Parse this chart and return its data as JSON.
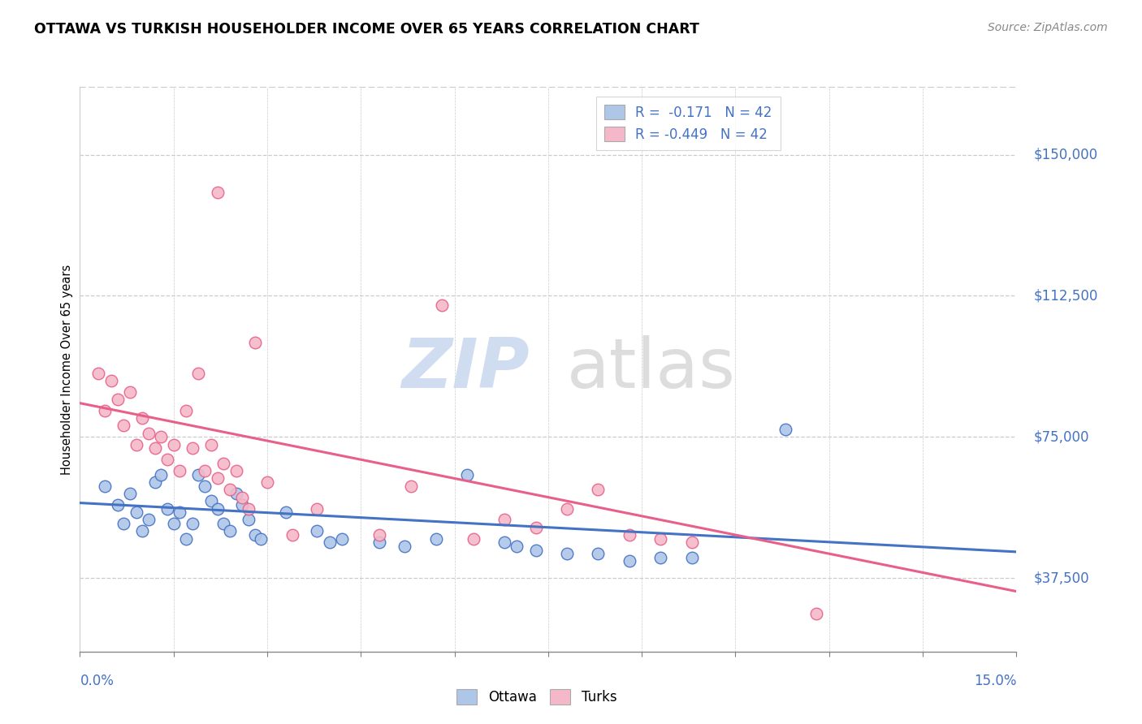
{
  "title": "OTTAWA VS TURKISH HOUSEHOLDER INCOME OVER 65 YEARS CORRELATION CHART",
  "source": "Source: ZipAtlas.com",
  "ylabel": "Householder Income Over 65 years",
  "xmin": 0.0,
  "xmax": 0.15,
  "ymin": 18000,
  "ymax": 168000,
  "yticks": [
    37500,
    75000,
    112500,
    150000
  ],
  "ytick_labels": [
    "$37,500",
    "$75,000",
    "$112,500",
    "$150,000"
  ],
  "legend_r_ottawa": "R =  -0.171",
  "legend_n_ottawa": "N = 42",
  "legend_r_turks": "R = -0.449",
  "legend_n_turks": "N = 42",
  "watermark_zip": "ZIP",
  "watermark_atlas": "atlas",
  "ottawa_color": "#aec6e8",
  "turks_color": "#f5b8c8",
  "ottawa_line_color": "#4472c4",
  "turks_line_color": "#e8608a",
  "background_color": "#ffffff",
  "ottawa_scatter": [
    [
      0.004,
      62000
    ],
    [
      0.006,
      57000
    ],
    [
      0.007,
      52000
    ],
    [
      0.008,
      60000
    ],
    [
      0.009,
      55000
    ],
    [
      0.01,
      50000
    ],
    [
      0.011,
      53000
    ],
    [
      0.012,
      63000
    ],
    [
      0.013,
      65000
    ],
    [
      0.014,
      56000
    ],
    [
      0.015,
      52000
    ],
    [
      0.016,
      55000
    ],
    [
      0.017,
      48000
    ],
    [
      0.018,
      52000
    ],
    [
      0.019,
      65000
    ],
    [
      0.02,
      62000
    ],
    [
      0.021,
      58000
    ],
    [
      0.022,
      56000
    ],
    [
      0.023,
      52000
    ],
    [
      0.024,
      50000
    ],
    [
      0.025,
      60000
    ],
    [
      0.026,
      57000
    ],
    [
      0.027,
      53000
    ],
    [
      0.028,
      49000
    ],
    [
      0.029,
      48000
    ],
    [
      0.033,
      55000
    ],
    [
      0.038,
      50000
    ],
    [
      0.04,
      47000
    ],
    [
      0.042,
      48000
    ],
    [
      0.048,
      47000
    ],
    [
      0.052,
      46000
    ],
    [
      0.057,
      48000
    ],
    [
      0.062,
      65000
    ],
    [
      0.068,
      47000
    ],
    [
      0.07,
      46000
    ],
    [
      0.073,
      45000
    ],
    [
      0.078,
      44000
    ],
    [
      0.083,
      44000
    ],
    [
      0.088,
      42000
    ],
    [
      0.093,
      43000
    ],
    [
      0.098,
      43000
    ],
    [
      0.113,
      77000
    ]
  ],
  "turks_scatter": [
    [
      0.003,
      92000
    ],
    [
      0.004,
      82000
    ],
    [
      0.005,
      90000
    ],
    [
      0.006,
      85000
    ],
    [
      0.007,
      78000
    ],
    [
      0.008,
      87000
    ],
    [
      0.009,
      73000
    ],
    [
      0.01,
      80000
    ],
    [
      0.011,
      76000
    ],
    [
      0.012,
      72000
    ],
    [
      0.013,
      75000
    ],
    [
      0.014,
      69000
    ],
    [
      0.015,
      73000
    ],
    [
      0.016,
      66000
    ],
    [
      0.017,
      82000
    ],
    [
      0.018,
      72000
    ],
    [
      0.019,
      92000
    ],
    [
      0.02,
      66000
    ],
    [
      0.021,
      73000
    ],
    [
      0.022,
      64000
    ],
    [
      0.023,
      68000
    ],
    [
      0.024,
      61000
    ],
    [
      0.025,
      66000
    ],
    [
      0.026,
      59000
    ],
    [
      0.027,
      56000
    ],
    [
      0.028,
      100000
    ],
    [
      0.03,
      63000
    ],
    [
      0.034,
      49000
    ],
    [
      0.038,
      56000
    ],
    [
      0.048,
      49000
    ],
    [
      0.053,
      62000
    ],
    [
      0.058,
      110000
    ],
    [
      0.063,
      48000
    ],
    [
      0.068,
      53000
    ],
    [
      0.073,
      51000
    ],
    [
      0.078,
      56000
    ],
    [
      0.083,
      61000
    ],
    [
      0.088,
      49000
    ],
    [
      0.093,
      48000
    ],
    [
      0.098,
      47000
    ],
    [
      0.022,
      140000
    ],
    [
      0.118,
      28000
    ]
  ],
  "ottawa_trendline": [
    [
      0.0,
      57500
    ],
    [
      0.15,
      44500
    ]
  ],
  "turks_trendline": [
    [
      0.0,
      84000
    ],
    [
      0.15,
      34000
    ]
  ]
}
